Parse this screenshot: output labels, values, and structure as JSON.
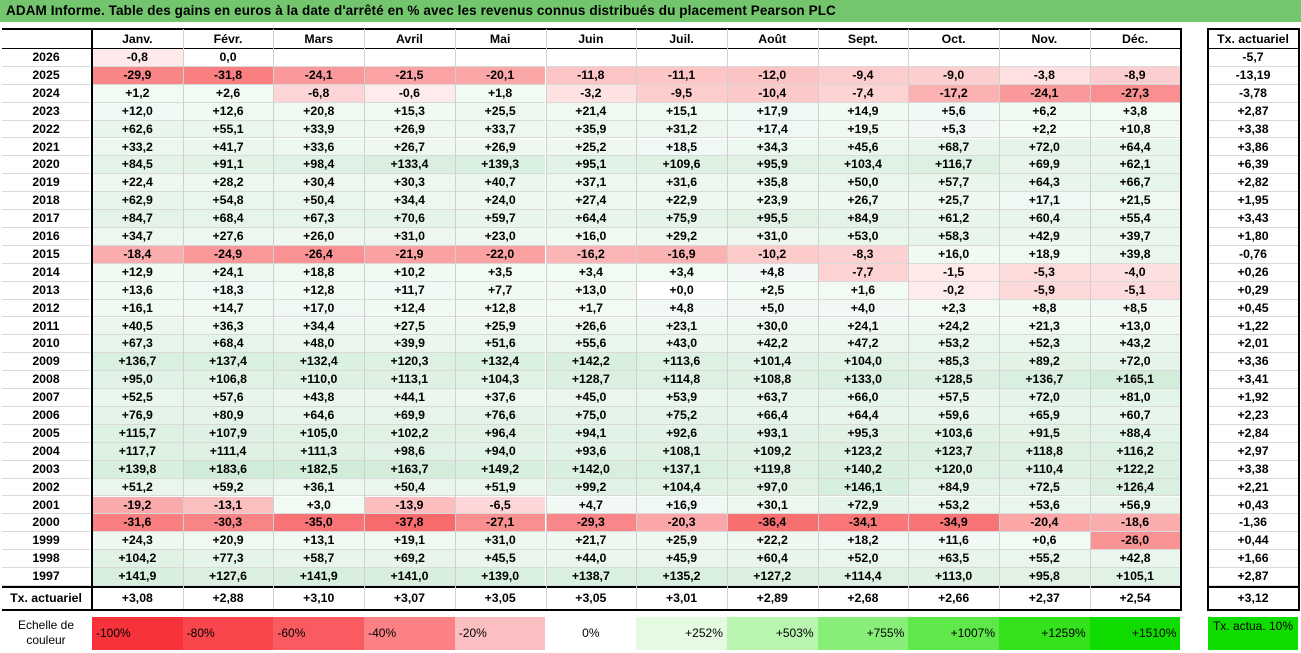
{
  "title": "ADAM Informe. Table des gains en euros à la date d'arrêté en % avec les revenus connus distribués du placement Pearson PLC",
  "chart_data": {
    "type": "heatmap",
    "columns": [
      "Janv.",
      "Févr.",
      "Mars",
      "Avril",
      "Mai",
      "Juin",
      "Juil.",
      "Août",
      "Sept.",
      "Oct.",
      "Nov.",
      "Déc."
    ],
    "side_header": "Tx. actuariel",
    "rows": [
      {
        "year": "2026",
        "values": [
          "-0,8",
          "0,0",
          "",
          "",
          "",
          "",
          "",
          "",
          "",
          "",
          "",
          ""
        ],
        "tx": "-5,7"
      },
      {
        "year": "2025",
        "values": [
          "-29,9",
          "-31,8",
          "-24,1",
          "-21,5",
          "-20,1",
          "-11,8",
          "-11,1",
          "-12,0",
          "-9,4",
          "-9,0",
          "-3,8",
          "-8,9"
        ],
        "tx": "-13,19"
      },
      {
        "year": "2024",
        "values": [
          "+1,2",
          "+2,6",
          "-6,8",
          "-0,6",
          "+1,8",
          "-3,2",
          "-9,5",
          "-10,4",
          "-7,4",
          "-17,2",
          "-24,1",
          "-27,3"
        ],
        "tx": "-3,78"
      },
      {
        "year": "2023",
        "values": [
          "+12,0",
          "+12,6",
          "+20,8",
          "+15,3",
          "+25,5",
          "+21,4",
          "+15,1",
          "+17,9",
          "+14,9",
          "+5,6",
          "+6,2",
          "+3,8"
        ],
        "tx": "+2,87"
      },
      {
        "year": "2022",
        "values": [
          "+62,6",
          "+55,1",
          "+33,9",
          "+26,9",
          "+33,7",
          "+35,9",
          "+31,2",
          "+17,4",
          "+19,5",
          "+5,3",
          "+2,2",
          "+10,8"
        ],
        "tx": "+3,38"
      },
      {
        "year": "2021",
        "values": [
          "+33,2",
          "+41,7",
          "+33,6",
          "+26,7",
          "+26,9",
          "+25,2",
          "+18,5",
          "+34,3",
          "+45,6",
          "+68,7",
          "+72,0",
          "+64,4"
        ],
        "tx": "+3,86"
      },
      {
        "year": "2020",
        "values": [
          "+84,5",
          "+91,1",
          "+98,4",
          "+133,4",
          "+139,3",
          "+95,1",
          "+109,6",
          "+95,9",
          "+103,4",
          "+116,7",
          "+69,9",
          "+62,1"
        ],
        "tx": "+6,39"
      },
      {
        "year": "2019",
        "values": [
          "+22,4",
          "+28,2",
          "+30,4",
          "+30,3",
          "+40,7",
          "+37,1",
          "+31,6",
          "+35,8",
          "+50,0",
          "+57,7",
          "+64,3",
          "+66,7"
        ],
        "tx": "+2,82"
      },
      {
        "year": "2018",
        "values": [
          "+62,9",
          "+54,8",
          "+50,4",
          "+34,4",
          "+24,0",
          "+27,4",
          "+22,9",
          "+23,9",
          "+26,7",
          "+25,7",
          "+17,1",
          "+21,5"
        ],
        "tx": "+1,95"
      },
      {
        "year": "2017",
        "values": [
          "+84,7",
          "+68,4",
          "+67,3",
          "+70,6",
          "+59,7",
          "+64,4",
          "+75,9",
          "+95,5",
          "+84,9",
          "+61,2",
          "+60,4",
          "+55,4"
        ],
        "tx": "+3,43"
      },
      {
        "year": "2016",
        "values": [
          "+34,7",
          "+27,6",
          "+26,0",
          "+31,0",
          "+23,0",
          "+16,0",
          "+29,2",
          "+31,0",
          "+53,0",
          "+58,3",
          "+42,9",
          "+39,7"
        ],
        "tx": "+1,80"
      },
      {
        "year": "2015",
        "values": [
          "-18,4",
          "-24,9",
          "-26,4",
          "-21,9",
          "-22,0",
          "-16,2",
          "-16,9",
          "-10,2",
          "-8,3",
          "+16,0",
          "+18,9",
          "+39,8"
        ],
        "tx": "-0,76"
      },
      {
        "year": "2014",
        "values": [
          "+12,9",
          "+24,1",
          "+18,8",
          "+10,2",
          "+3,5",
          "+3,4",
          "+3,4",
          "+4,8",
          "-7,7",
          "-1,5",
          "-5,3",
          "-4,0"
        ],
        "tx": "+0,26"
      },
      {
        "year": "2013",
        "values": [
          "+13,6",
          "+18,3",
          "+12,8",
          "+11,7",
          "+7,7",
          "+13,0",
          "+0,0",
          "+2,5",
          "+1,6",
          "-0,2",
          "-5,9",
          "-5,1"
        ],
        "tx": "+0,29"
      },
      {
        "year": "2012",
        "values": [
          "+16,1",
          "+14,7",
          "+17,0",
          "+12,4",
          "+12,8",
          "+1,7",
          "+4,8",
          "+5,0",
          "+4,0",
          "+2,3",
          "+8,8",
          "+8,5"
        ],
        "tx": "+0,45"
      },
      {
        "year": "2011",
        "values": [
          "+40,5",
          "+36,3",
          "+34,4",
          "+27,5",
          "+25,9",
          "+26,6",
          "+23,1",
          "+30,0",
          "+24,1",
          "+24,2",
          "+21,3",
          "+13,0"
        ],
        "tx": "+1,22"
      },
      {
        "year": "2010",
        "values": [
          "+67,3",
          "+68,4",
          "+48,0",
          "+39,9",
          "+51,6",
          "+55,6",
          "+43,0",
          "+42,2",
          "+47,2",
          "+53,2",
          "+52,3",
          "+43,2"
        ],
        "tx": "+2,01"
      },
      {
        "year": "2009",
        "values": [
          "+136,7",
          "+137,4",
          "+132,4",
          "+120,3",
          "+132,4",
          "+142,2",
          "+113,6",
          "+101,4",
          "+104,0",
          "+85,3",
          "+89,2",
          "+72,0"
        ],
        "tx": "+3,36"
      },
      {
        "year": "2008",
        "values": [
          "+95,0",
          "+106,8",
          "+110,0",
          "+113,1",
          "+104,3",
          "+128,7",
          "+114,8",
          "+108,8",
          "+133,0",
          "+128,5",
          "+136,7",
          "+165,1"
        ],
        "tx": "+3,41"
      },
      {
        "year": "2007",
        "values": [
          "+52,5",
          "+57,6",
          "+43,8",
          "+44,1",
          "+37,6",
          "+45,0",
          "+53,9",
          "+63,7",
          "+66,0",
          "+57,5",
          "+72,0",
          "+81,0"
        ],
        "tx": "+1,92"
      },
      {
        "year": "2006",
        "values": [
          "+76,9",
          "+80,9",
          "+64,6",
          "+69,9",
          "+76,6",
          "+75,0",
          "+75,2",
          "+66,4",
          "+64,4",
          "+59,6",
          "+65,9",
          "+60,7"
        ],
        "tx": "+2,23"
      },
      {
        "year": "2005",
        "values": [
          "+115,7",
          "+107,9",
          "+105,0",
          "+102,2",
          "+96,4",
          "+94,1",
          "+92,6",
          "+93,1",
          "+95,3",
          "+103,6",
          "+91,5",
          "+88,4"
        ],
        "tx": "+2,84"
      },
      {
        "year": "2004",
        "values": [
          "+117,7",
          "+111,4",
          "+111,3",
          "+98,6",
          "+94,0",
          "+93,6",
          "+108,1",
          "+109,2",
          "+123,2",
          "+123,7",
          "+118,8",
          "+116,2"
        ],
        "tx": "+2,97"
      },
      {
        "year": "2003",
        "values": [
          "+139,8",
          "+183,6",
          "+182,5",
          "+163,7",
          "+149,2",
          "+142,0",
          "+137,1",
          "+119,8",
          "+140,2",
          "+120,0",
          "+110,4",
          "+122,2"
        ],
        "tx": "+3,38"
      },
      {
        "year": "2002",
        "values": [
          "+51,2",
          "+59,2",
          "+36,1",
          "+50,4",
          "+51,9",
          "+99,2",
          "+104,4",
          "+97,0",
          "+146,1",
          "+84,9",
          "+72,5",
          "+126,4"
        ],
        "tx": "+2,21"
      },
      {
        "year": "2001",
        "values": [
          "-19,2",
          "-13,1",
          "+3,0",
          "-13,9",
          "-6,5",
          "+4,7",
          "+16,9",
          "+30,1",
          "+72,9",
          "+53,2",
          "+53,6",
          "+56,9"
        ],
        "tx": "+0,43"
      },
      {
        "year": "2000",
        "values": [
          "-31,6",
          "-30,3",
          "-35,0",
          "-37,8",
          "-27,1",
          "-29,3",
          "-20,3",
          "-36,4",
          "-34,1",
          "-34,9",
          "-20,4",
          "-18,6"
        ],
        "tx": "-1,36"
      },
      {
        "year": "1999",
        "values": [
          "+24,3",
          "+20,9",
          "+13,1",
          "+19,1",
          "+31,0",
          "+21,7",
          "+25,9",
          "+22,2",
          "+18,2",
          "+11,6",
          "+0,6",
          "-26,0"
        ],
        "tx": "+0,44"
      },
      {
        "year": "1998",
        "values": [
          "+104,2",
          "+77,3",
          "+58,7",
          "+69,2",
          "+45,5",
          "+44,0",
          "+45,9",
          "+60,4",
          "+52,0",
          "+63,5",
          "+55,2",
          "+42,8"
        ],
        "tx": "+1,66"
      },
      {
        "year": "1997",
        "values": [
          "+141,9",
          "+127,6",
          "+141,9",
          "+141,0",
          "+139,0",
          "+138,7",
          "+135,2",
          "+127,2",
          "+114,4",
          "+113,0",
          "+95,8",
          "+105,1"
        ],
        "tx": "+2,87"
      }
    ],
    "footer": {
      "label": "Tx. actuariel",
      "values": [
        "+3,08",
        "+2,88",
        "+3,10",
        "+3,07",
        "+3,05",
        "+3,05",
        "+3,01",
        "+2,89",
        "+2,68",
        "+2,66",
        "+2,37",
        "+2,54"
      ],
      "tx": "+3,12"
    },
    "legend": {
      "label": "Echelle de couleur",
      "items": [
        {
          "text": "-100%",
          "color": "#f8323a"
        },
        {
          "text": "-80%",
          "color": "#f9454c"
        },
        {
          "text": "-60%",
          "color": "#fa5b61"
        },
        {
          "text": "-40%",
          "color": "#fb8185"
        },
        {
          "text": "-20%",
          "color": "#fcbfc1"
        },
        {
          "text": "0%",
          "color": "#ffffff"
        },
        {
          "text": "+252%",
          "color": "#e4fbe1"
        },
        {
          "text": "+503%",
          "color": "#b8f5ae"
        },
        {
          "text": "+755%",
          "color": "#87ee78"
        },
        {
          "text": "+1007%",
          "color": "#5fe84a"
        },
        {
          "text": "+1259%",
          "color": "#33e21b"
        },
        {
          "text": "+1510%",
          "color": "#10dc00"
        }
      ],
      "side": {
        "text": "Tx. actua. 10%",
        "color": "#10dc00"
      }
    },
    "colors": {
      "title_bg": "#73c56e",
      "neg_base": "#f8696b",
      "pos_base": "#63be7b"
    }
  }
}
